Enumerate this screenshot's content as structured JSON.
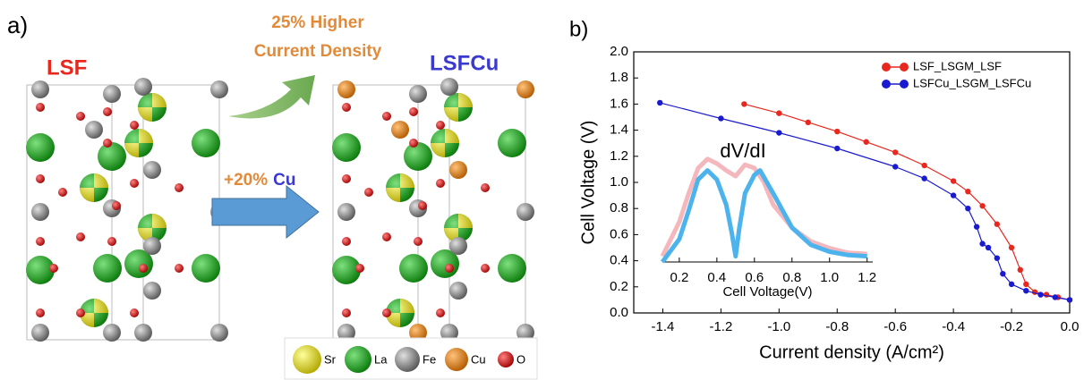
{
  "panel_a": {
    "label": "a)",
    "left_title": "LSF",
    "right_title": "LSFCu",
    "arrow_top_text": [
      "25% Higher",
      "Current Density"
    ],
    "arrow_mid_text": [
      "+20%",
      "Cu"
    ],
    "atom_legend": [
      "Sr",
      "La",
      "Fe",
      "Cu",
      "O"
    ]
  },
  "panel_b": {
    "label": "b)"
  },
  "chart_data": [
    {
      "type": "line",
      "markers": true,
      "xlabel": "Current density (A/cm²)",
      "ylabel": "Cell Voltage (V)",
      "xlim": [
        -1.5,
        0
      ],
      "ylim": [
        0,
        2.0
      ],
      "xticks": [
        -1.4,
        -1.2,
        {
          "value": -1.0,
          "label": "-1.0"
        },
        -0.8,
        -0.6,
        -0.4,
        -0.2,
        {
          "value": 0,
          "label": "0.0"
        }
      ],
      "yticks": [
        {
          "value": 0,
          "label": "0.0"
        },
        0.2,
        0.4,
        0.6,
        0.8,
        {
          "value": 1.0,
          "label": "1.0"
        },
        1.2,
        1.4,
        1.6,
        1.8,
        {
          "value": 2.0,
          "label": "2.0"
        }
      ],
      "legend": "upper right",
      "series": [
        {
          "name": "LSF_LSGM_LSF",
          "color": "#e8281e",
          "x": [
            -1.12,
            -1.0,
            -0.9,
            -0.8,
            -0.7,
            -0.6,
            -0.5,
            -0.4,
            -0.35,
            -0.3,
            -0.25,
            -0.2,
            -0.17,
            -0.15,
            -0.12,
            -0.08,
            -0.04,
            0
          ],
          "values": [
            1.6,
            1.53,
            1.46,
            1.39,
            1.31,
            1.23,
            1.13,
            1.01,
            0.93,
            0.82,
            0.68,
            0.5,
            0.33,
            0.22,
            0.16,
            0.14,
            0.12,
            0.1
          ]
        },
        {
          "name": "LSFCu_LSGM_LSFCu",
          "color": "#1a1ad0",
          "x": [
            -1.41,
            -1.2,
            -1.0,
            -0.8,
            -0.6,
            -0.5,
            -0.4,
            -0.35,
            -0.32,
            -0.3,
            -0.28,
            -0.25,
            -0.23,
            -0.2,
            -0.15,
            -0.1,
            -0.05,
            0
          ],
          "values": [
            1.61,
            1.49,
            1.38,
            1.26,
            1.12,
            1.03,
            0.9,
            0.8,
            0.66,
            0.53,
            0.5,
            0.42,
            0.3,
            0.22,
            0.17,
            0.14,
            0.12,
            0.1
          ]
        }
      ]
    },
    {
      "type": "line",
      "markers": false,
      "title": "dV/dI",
      "xlabel": "Cell Voltage(V)",
      "xlim": [
        0.11,
        1.23
      ],
      "ylim": [
        0,
        1
      ],
      "xticks": [
        0.2,
        0.4,
        0.6,
        0.8,
        {
          "value": 1.0,
          "label": "1.0"
        },
        1.2
      ],
      "series": [
        {
          "color": "#f4b8bc",
          "x": [
            0.11,
            0.2,
            0.25,
            0.3,
            0.35,
            0.4,
            0.45,
            0.5,
            0.55,
            0.6,
            0.65,
            0.7,
            0.8,
            0.9,
            1.0,
            1.1,
            1.2
          ],
          "values": [
            0.05,
            0.35,
            0.6,
            0.82,
            0.9,
            0.86,
            0.8,
            0.75,
            0.85,
            0.82,
            0.7,
            0.5,
            0.3,
            0.18,
            0.12,
            0.08,
            0.07
          ]
        },
        {
          "color": "#4db3ec",
          "x": [
            0.11,
            0.2,
            0.25,
            0.3,
            0.35,
            0.4,
            0.45,
            0.48,
            0.5,
            0.52,
            0.55,
            0.6,
            0.63,
            0.7,
            0.8,
            0.9,
            1.0,
            1.1,
            1.2
          ],
          "values": [
            0.0,
            0.2,
            0.45,
            0.72,
            0.8,
            0.72,
            0.5,
            0.25,
            0.05,
            0.3,
            0.6,
            0.76,
            0.8,
            0.6,
            0.3,
            0.15,
            0.09,
            0.06,
            0.05
          ]
        }
      ]
    }
  ]
}
